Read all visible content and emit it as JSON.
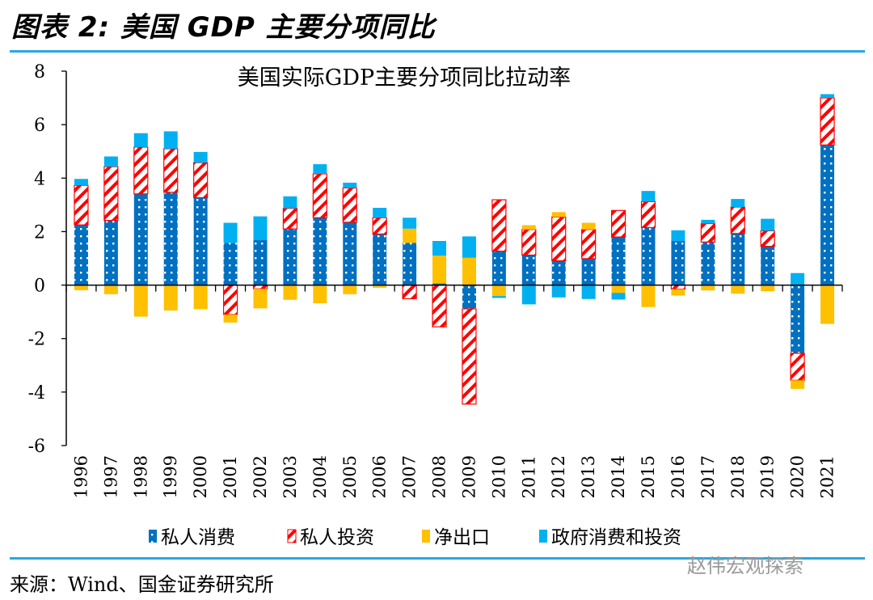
{
  "figure_title": "图表 2:  美国 GDP 主要分项同比",
  "source": "来源：Wind、国金证券研究所",
  "watermark": "赵伟宏观探索",
  "chart_data": {
    "type": "bar",
    "stacked": true,
    "title": "美国实际GDP主要分项同比拉动率",
    "xlabel": "",
    "ylabel": "",
    "ylim": [
      -6,
      8
    ],
    "yticks": [
      -6,
      -4,
      -2,
      0,
      2,
      4,
      6,
      8
    ],
    "grid": false,
    "legend_position": "bottom",
    "categories": [
      "1996",
      "1997",
      "1998",
      "1999",
      "2000",
      "2001",
      "2002",
      "2003",
      "2004",
      "2005",
      "2006",
      "2007",
      "2008",
      "2009",
      "2010",
      "2011",
      "2012",
      "2013",
      "2014",
      "2015",
      "2016",
      "2017",
      "2018",
      "2019",
      "2020",
      "2021"
    ],
    "series": [
      {
        "name": "私人消费",
        "color": "#0070c0",
        "pattern": "dots",
        "values": [
          2.25,
          2.42,
          3.41,
          3.47,
          3.27,
          1.58,
          1.68,
          2.1,
          2.52,
          2.35,
          1.91,
          1.58,
          0.06,
          -0.89,
          1.27,
          1.12,
          0.91,
          0.99,
          1.8,
          2.15,
          1.65,
          1.61,
          1.93,
          1.45,
          -2.55,
          5.24
        ]
      },
      {
        "name": "私人投资",
        "color": "#ff0000",
        "pattern": "stripes",
        "values": [
          1.48,
          2.01,
          1.75,
          1.63,
          1.31,
          -1.1,
          -0.14,
          0.77,
          1.64,
          1.28,
          0.61,
          -0.51,
          -1.56,
          -3.56,
          1.92,
          0.96,
          1.64,
          1.09,
          0.99,
          0.97,
          -0.15,
          0.69,
          0.99,
          0.58,
          -1.01,
          1.76
        ]
      },
      {
        "name": "净出口",
        "color": "#ffc000",
        "pattern": "solid",
        "values": [
          -0.19,
          -0.34,
          -1.18,
          -0.95,
          -0.9,
          -0.3,
          -0.73,
          -0.55,
          -0.68,
          -0.34,
          -0.1,
          0.53,
          1.04,
          1.02,
          -0.41,
          0.16,
          0.18,
          0.25,
          -0.29,
          -0.82,
          -0.24,
          -0.2,
          -0.32,
          -0.23,
          -0.32,
          -1.45
        ]
      },
      {
        "name": "政府消费和投资",
        "color": "#00b0f0",
        "pattern": "solid",
        "values": [
          0.24,
          0.38,
          0.52,
          0.65,
          0.4,
          0.75,
          0.89,
          0.45,
          0.36,
          0.2,
          0.37,
          0.41,
          0.55,
          0.8,
          -0.07,
          -0.72,
          -0.46,
          -0.52,
          -0.25,
          0.4,
          0.4,
          0.14,
          0.3,
          0.45,
          0.45,
          0.14
        ]
      }
    ]
  }
}
